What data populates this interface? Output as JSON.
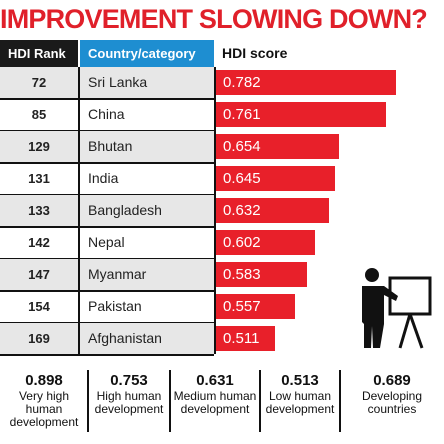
{
  "title": "IMPROVEMENT SLOWING DOWN?",
  "headers": {
    "rank": "HDI Rank",
    "country": "Country/category",
    "score": "HDI score"
  },
  "colors": {
    "bar": "#e8202a",
    "title": "#e0202a",
    "country_header": "#1e8ed1",
    "rank_header": "#1a1a1a"
  },
  "chart_data": {
    "type": "bar",
    "orientation": "horizontal",
    "title": "IMPROVEMENT SLOWING DOWN?",
    "categories": [
      "Sri Lanka",
      "China",
      "Bhutan",
      "India",
      "Bangladesh",
      "Nepal",
      "Myanmar",
      "Pakistan",
      "Afghanistan"
    ],
    "ranks": [
      "72",
      "85",
      "129",
      "131",
      "133",
      "142",
      "147",
      "154",
      "169"
    ],
    "values": [
      0.782,
      0.761,
      0.654,
      0.645,
      0.632,
      0.602,
      0.583,
      0.557,
      0.511
    ],
    "value_labels": [
      "0.782",
      "0.761",
      "0.654",
      "0.645",
      "0.632",
      "0.602",
      "0.583",
      "0.557",
      "0.511"
    ],
    "xlim": [
      0.38,
      0.89
    ],
    "grid": false
  },
  "legend": [
    {
      "value": "0.898",
      "label": "Very high human development"
    },
    {
      "value": "0.753",
      "label": "High human development"
    },
    {
      "value": "0.631",
      "label": "Medium human development"
    },
    {
      "value": "0.513",
      "label": "Low human development"
    },
    {
      "value": "0.689",
      "label": "Developing countries"
    }
  ],
  "icon": "presenter-board-icon"
}
